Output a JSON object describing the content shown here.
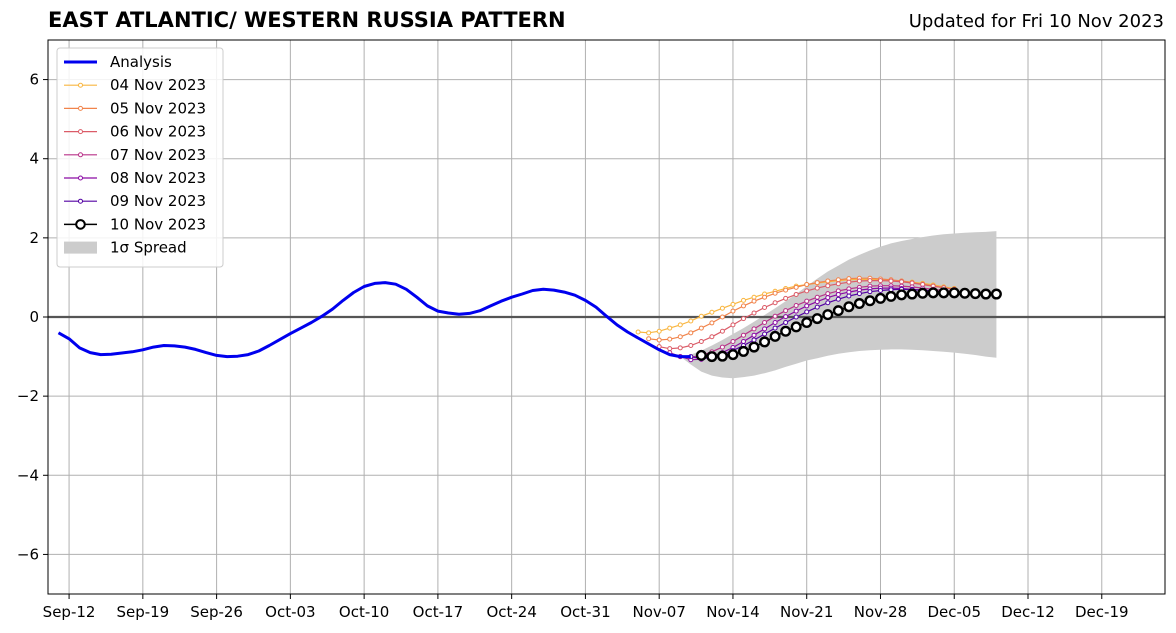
{
  "header": {
    "title": "EAST ATLANTIC/ WESTERN RUSSIA PATTERN",
    "updated": "Updated for Fri 10 Nov 2023"
  },
  "chart_data": {
    "type": "line",
    "title": "EAST ATLANTIC/ WESTERN RUSSIA PATTERN",
    "subtitle": "Updated for Fri 10 Nov 2023",
    "xlabel": "",
    "ylabel": "",
    "x_axis": {
      "type": "date",
      "range": [
        "2023-09-10",
        "2023-12-25"
      ],
      "ticks": [
        "2023-09-12",
        "2023-09-19",
        "2023-09-26",
        "2023-10-03",
        "2023-10-10",
        "2023-10-17",
        "2023-10-24",
        "2023-10-31",
        "2023-11-07",
        "2023-11-14",
        "2023-11-21",
        "2023-11-28",
        "2023-12-05",
        "2023-12-12",
        "2023-12-19"
      ],
      "tick_labels": [
        "Sep-12",
        "Sep-19",
        "Sep-26",
        "Oct-03",
        "Oct-10",
        "Oct-17",
        "Oct-24",
        "Oct-31",
        "Nov-07",
        "Nov-14",
        "Nov-21",
        "Nov-28",
        "Dec-05",
        "Dec-12",
        "Dec-19"
      ]
    },
    "y_axis": {
      "range": [
        -7,
        7
      ],
      "ticks": [
        -6,
        -4,
        -2,
        0,
        2,
        4,
        6
      ],
      "tick_labels": [
        "−6",
        "−4",
        "−2",
        "0",
        "2",
        "4",
        "6"
      ]
    },
    "grid": true,
    "legend_position": "upper-left",
    "analysis": {
      "name": "Analysis",
      "color": "#0000ee",
      "points": [
        [
          "2023-09-11",
          -0.4
        ],
        [
          "2023-09-12",
          -0.55
        ],
        [
          "2023-09-13",
          -0.78
        ],
        [
          "2023-09-14",
          -0.9
        ],
        [
          "2023-09-15",
          -0.95
        ],
        [
          "2023-09-16",
          -0.94
        ],
        [
          "2023-09-17",
          -0.91
        ],
        [
          "2023-09-18",
          -0.88
        ],
        [
          "2023-09-19",
          -0.83
        ],
        [
          "2023-09-20",
          -0.76
        ],
        [
          "2023-09-21",
          -0.72
        ],
        [
          "2023-09-22",
          -0.73
        ],
        [
          "2023-09-23",
          -0.76
        ],
        [
          "2023-09-24",
          -0.82
        ],
        [
          "2023-09-25",
          -0.9
        ],
        [
          "2023-09-26",
          -0.97
        ],
        [
          "2023-09-27",
          -1.0
        ],
        [
          "2023-09-28",
          -0.99
        ],
        [
          "2023-09-29",
          -0.95
        ],
        [
          "2023-09-30",
          -0.86
        ],
        [
          "2023-10-01",
          -0.72
        ],
        [
          "2023-10-02",
          -0.57
        ],
        [
          "2023-10-03",
          -0.42
        ],
        [
          "2023-10-04",
          -0.28
        ],
        [
          "2023-10-05",
          -0.14
        ],
        [
          "2023-10-06",
          0.02
        ],
        [
          "2023-10-07",
          0.2
        ],
        [
          "2023-10-08",
          0.42
        ],
        [
          "2023-10-09",
          0.62
        ],
        [
          "2023-10-10",
          0.77
        ],
        [
          "2023-10-11",
          0.85
        ],
        [
          "2023-10-12",
          0.87
        ],
        [
          "2023-10-13",
          0.83
        ],
        [
          "2023-10-14",
          0.7
        ],
        [
          "2023-10-15",
          0.5
        ],
        [
          "2023-10-16",
          0.28
        ],
        [
          "2023-10-17",
          0.15
        ],
        [
          "2023-10-18",
          0.1
        ],
        [
          "2023-10-19",
          0.07
        ],
        [
          "2023-10-20",
          0.09
        ],
        [
          "2023-10-21",
          0.16
        ],
        [
          "2023-10-22",
          0.28
        ],
        [
          "2023-10-23",
          0.4
        ],
        [
          "2023-10-24",
          0.5
        ],
        [
          "2023-10-25",
          0.58
        ],
        [
          "2023-10-26",
          0.67
        ],
        [
          "2023-10-27",
          0.7
        ],
        [
          "2023-10-28",
          0.68
        ],
        [
          "2023-10-29",
          0.63
        ],
        [
          "2023-10-30",
          0.55
        ],
        [
          "2023-10-31",
          0.42
        ],
        [
          "2023-11-01",
          0.25
        ],
        [
          "2023-11-02",
          0.02
        ],
        [
          "2023-11-03",
          -0.2
        ],
        [
          "2023-11-04",
          -0.38
        ],
        [
          "2023-11-05",
          -0.53
        ],
        [
          "2023-11-06",
          -0.68
        ],
        [
          "2023-11-07",
          -0.83
        ],
        [
          "2023-11-08",
          -0.95
        ],
        [
          "2023-11-09",
          -1.0
        ],
        [
          "2023-11-10",
          -1.0
        ]
      ]
    },
    "spread": {
      "name": "1σ Spread",
      "color": "#cccccc",
      "dates": [
        "2023-11-09",
        "2023-11-10",
        "2023-11-11",
        "2023-11-12",
        "2023-11-13",
        "2023-11-14",
        "2023-11-15",
        "2023-11-16",
        "2023-11-17",
        "2023-11-18",
        "2023-11-19",
        "2023-11-20",
        "2023-11-21",
        "2023-11-22",
        "2023-11-23",
        "2023-11-24",
        "2023-11-25",
        "2023-11-26",
        "2023-11-27",
        "2023-11-28",
        "2023-11-29",
        "2023-11-30",
        "2023-12-01",
        "2023-12-02",
        "2023-12-03",
        "2023-12-04",
        "2023-12-05",
        "2023-12-06",
        "2023-12-07",
        "2023-12-08",
        "2023-12-09"
      ],
      "upper": [
        -1.0,
        -0.95,
        -0.85,
        -0.72,
        -0.58,
        -0.43,
        -0.28,
        -0.12,
        0.05,
        0.22,
        0.4,
        0.58,
        0.78,
        0.97,
        1.15,
        1.3,
        1.45,
        1.57,
        1.68,
        1.78,
        1.86,
        1.92,
        1.97,
        2.02,
        2.06,
        2.09,
        2.11,
        2.13,
        2.14,
        2.15,
        2.17
      ],
      "lower": [
        -1.0,
        -1.2,
        -1.38,
        -1.48,
        -1.53,
        -1.55,
        -1.52,
        -1.48,
        -1.42,
        -1.35,
        -1.26,
        -1.18,
        -1.1,
        -1.04,
        -0.98,
        -0.93,
        -0.89,
        -0.86,
        -0.84,
        -0.83,
        -0.82,
        -0.82,
        -0.83,
        -0.84,
        -0.86,
        -0.88,
        -0.9,
        -0.93,
        -0.96,
        -1.0,
        -1.03
      ]
    },
    "series": [
      {
        "name": "04 Nov 2023",
        "color": "#f9b640",
        "start": "2023-11-05",
        "values": [
          -0.38,
          -0.4,
          -0.36,
          -0.28,
          -0.2,
          -0.1,
          0.02,
          0.12,
          0.22,
          0.32,
          0.42,
          0.5,
          0.58,
          0.65,
          0.72,
          0.78,
          0.82,
          0.86,
          0.89,
          0.92,
          0.94,
          0.95,
          0.95,
          0.94,
          0.93,
          0.91,
          0.88,
          0.85,
          0.81,
          0.76,
          0.72
        ]
      },
      {
        "name": "05 Nov 2023",
        "color": "#f1844b",
        "start": "2023-11-06",
        "values": [
          -0.55,
          -0.58,
          -0.56,
          -0.5,
          -0.4,
          -0.28,
          -0.15,
          0.0,
          0.15,
          0.28,
          0.4,
          0.5,
          0.6,
          0.68,
          0.75,
          0.82,
          0.87,
          0.91,
          0.94,
          0.97,
          0.98,
          0.98,
          0.96,
          0.94,
          0.91,
          0.87,
          0.83,
          0.78,
          0.74,
          0.7
        ]
      },
      {
        "name": "06 Nov 2023",
        "color": "#db5c68",
        "start": "2023-11-07",
        "values": [
          -0.75,
          -0.8,
          -0.78,
          -0.72,
          -0.62,
          -0.5,
          -0.36,
          -0.2,
          -0.04,
          0.1,
          0.24,
          0.36,
          0.47,
          0.57,
          0.66,
          0.73,
          0.79,
          0.84,
          0.88,
          0.91,
          0.92,
          0.92,
          0.91,
          0.89,
          0.86,
          0.82,
          0.78,
          0.74,
          0.7
        ]
      },
      {
        "name": "07 Nov 2023",
        "color": "#b93289",
        "start": "2023-11-08",
        "values": [
          -0.9,
          -1.0,
          -1.02,
          -0.97,
          -0.88,
          -0.76,
          -0.62,
          -0.46,
          -0.3,
          -0.14,
          0.02,
          0.16,
          0.29,
          0.4,
          0.5,
          0.59,
          0.66,
          0.71,
          0.75,
          0.78,
          0.79,
          0.79,
          0.78,
          0.76,
          0.73,
          0.7,
          0.67,
          0.64
        ]
      },
      {
        "name": "08 Nov 2023",
        "color": "#8b0aa5",
        "start": "2023-11-09",
        "values": [
          -1.0,
          -1.08,
          -1.07,
          -1.0,
          -0.9,
          -0.77,
          -0.62,
          -0.46,
          -0.3,
          -0.14,
          0.01,
          0.15,
          0.28,
          0.39,
          0.49,
          0.57,
          0.63,
          0.68,
          0.71,
          0.73,
          0.73,
          0.72,
          0.7,
          0.68,
          0.65,
          0.62,
          0.6
        ]
      },
      {
        "name": "09 Nov 2023",
        "color": "#5302a3",
        "start": "2023-11-10",
        "values": [
          -1.0,
          -1.05,
          -1.02,
          -0.95,
          -0.85,
          -0.72,
          -0.58,
          -0.43,
          -0.28,
          -0.14,
          0.0,
          0.13,
          0.25,
          0.36,
          0.45,
          0.53,
          0.59,
          0.64,
          0.67,
          0.69,
          0.7,
          0.69,
          0.68,
          0.66,
          0.63,
          0.6
        ]
      },
      {
        "name": "10 Nov 2023",
        "color": "#000000",
        "start": "2023-11-11",
        "marker": "open-circle",
        "values": [
          -0.97,
          -1.0,
          -0.99,
          -0.95,
          -0.87,
          -0.76,
          -0.63,
          -0.49,
          -0.36,
          -0.25,
          -0.14,
          -0.04,
          0.06,
          0.16,
          0.26,
          0.34,
          0.41,
          0.47,
          0.52,
          0.56,
          0.58,
          0.6,
          0.61,
          0.61,
          0.61,
          0.6,
          0.59,
          0.58,
          0.58
        ]
      }
    ],
    "legend": [
      "Analysis",
      "04 Nov 2023",
      "05 Nov 2023",
      "06 Nov 2023",
      "07 Nov 2023",
      "08 Nov 2023",
      "09 Nov 2023",
      "10 Nov 2023",
      "1σ Spread"
    ]
  }
}
